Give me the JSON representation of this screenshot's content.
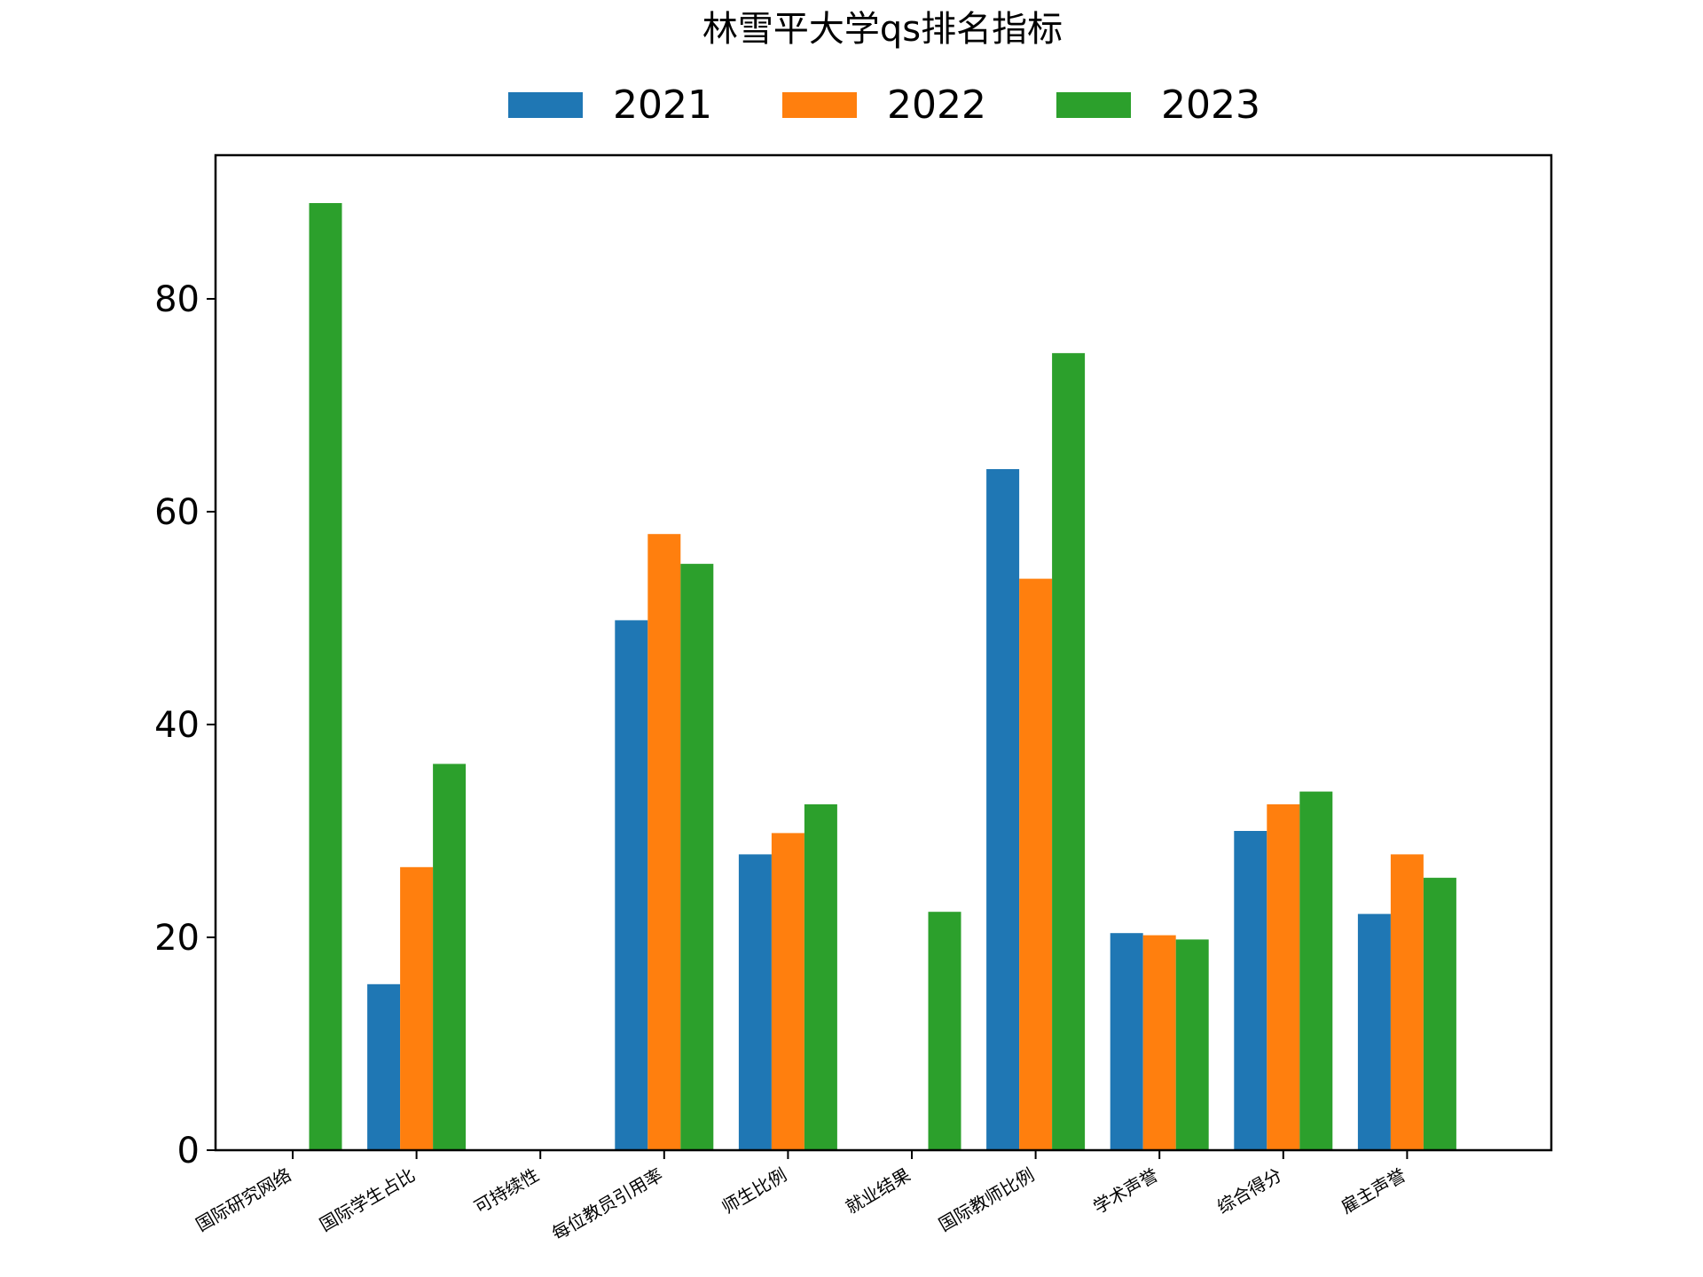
{
  "chart_data": {
    "type": "bar",
    "title": "林雪平大学qs排名指标",
    "xlabel": "",
    "ylabel": "",
    "categories": [
      "国际研究网络",
      "国际学生占比",
      "可持续性",
      "每位教员引用率",
      "师生比例",
      "就业结果",
      "国际教师比例",
      "学术声誉",
      "综合得分",
      "雇主声誉"
    ],
    "series": [
      {
        "name": "2021",
        "color": "#1f77b4",
        "values": [
          null,
          15.6,
          null,
          49.8,
          27.8,
          null,
          64.0,
          20.4,
          30.0,
          22.2
        ]
      },
      {
        "name": "2022",
        "color": "#ff7f0e",
        "values": [
          null,
          26.6,
          null,
          57.9,
          29.8,
          null,
          53.7,
          20.2,
          32.5,
          27.8
        ]
      },
      {
        "name": "2023",
        "color": "#2ca02c",
        "values": [
          89.0,
          36.3,
          null,
          55.1,
          32.5,
          22.4,
          74.9,
          19.8,
          33.7,
          25.6
        ]
      }
    ],
    "ylim": [
      0,
      93.5
    ],
    "yticks": [
      0,
      20,
      40,
      60,
      80
    ],
    "grid": false,
    "legend": "top-center"
  }
}
